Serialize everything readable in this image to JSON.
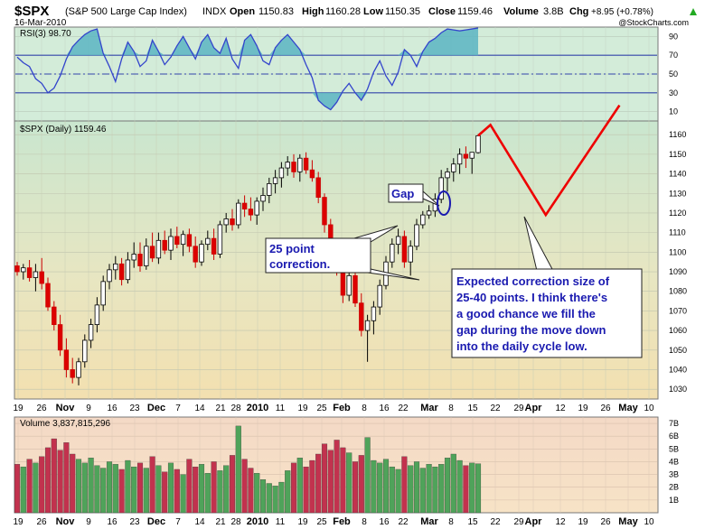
{
  "header": {
    "symbol": "$SPX",
    "name": "(S&P 500 Large Cap Index)",
    "exchange": "INDX",
    "date": "16-Mar-2010",
    "open_label": "Open",
    "open": "1150.83",
    "high_label": "High",
    "high": "1160.28",
    "low_label": "Low",
    "low": "1150.35",
    "close_label": "Close",
    "close": "1159.46",
    "volume_label": "Volume",
    "volume": "3.8B",
    "chg_label": "Chg",
    "chg": "+8.95 (+0.78%)",
    "chg_icon": "up-arrow-icon",
    "brand": "@StockCharts.com"
  },
  "rsi": {
    "label": "RSI(3) 98.70",
    "ticks": [
      "90",
      "70",
      "50",
      "30",
      "10"
    ],
    "tick_values": [
      90,
      70,
      50,
      30,
      10
    ],
    "ylim": [
      0,
      100
    ],
    "overbought": 70,
    "oversold": 30,
    "values": [
      68,
      62,
      58,
      45,
      40,
      30,
      35,
      48,
      66,
      79,
      86,
      92,
      96,
      98,
      72,
      58,
      42,
      66,
      84,
      74,
      58,
      64,
      86,
      74,
      60,
      68,
      80,
      90,
      78,
      66,
      84,
      92,
      78,
      72,
      88,
      66,
      56,
      86,
      92,
      80,
      64,
      60,
      78,
      86,
      92,
      84,
      76,
      60,
      46,
      22,
      16,
      12,
      20,
      32,
      40,
      30,
      22,
      34,
      52,
      64,
      48,
      38,
      52,
      76,
      70,
      58,
      74,
      84,
      88,
      94,
      98,
      97,
      96,
      97,
      98,
      99
    ]
  },
  "price": {
    "label": "$SPX (Daily) 1159.46",
    "ticks": [
      "1160",
      "1150",
      "1140",
      "1130",
      "1120",
      "1110",
      "1100",
      "1090",
      "1080",
      "1070",
      "1060",
      "1050",
      "1040",
      "1030"
    ],
    "tick_values": [
      1160,
      1150,
      1140,
      1130,
      1120,
      1110,
      1100,
      1090,
      1080,
      1070,
      1060,
      1050,
      1040,
      1030
    ],
    "ylim": [
      1025,
      1167
    ],
    "bullish_color": "#ffffff",
    "bearish_color": "#dd0000",
    "candles": [
      [
        1093,
        1095,
        1088,
        1090
      ],
      [
        1090,
        1094,
        1086,
        1092
      ],
      [
        1092,
        1096,
        1085,
        1087
      ],
      [
        1087,
        1094,
        1080,
        1090
      ],
      [
        1090,
        1097,
        1081,
        1084
      ],
      [
        1084,
        1087,
        1070,
        1072
      ],
      [
        1072,
        1075,
        1060,
        1063
      ],
      [
        1063,
        1068,
        1047,
        1050
      ],
      [
        1050,
        1056,
        1036,
        1040
      ],
      [
        1040,
        1046,
        1033,
        1036
      ],
      [
        1036,
        1046,
        1032,
        1044
      ],
      [
        1044,
        1058,
        1041,
        1055
      ],
      [
        1055,
        1066,
        1051,
        1063
      ],
      [
        1063,
        1077,
        1059,
        1073
      ],
      [
        1073,
        1088,
        1070,
        1085
      ],
      [
        1085,
        1094,
        1081,
        1091
      ],
      [
        1091,
        1098,
        1086,
        1094
      ],
      [
        1094,
        1097,
        1083,
        1086
      ],
      [
        1086,
        1100,
        1084,
        1096
      ],
      [
        1096,
        1105,
        1092,
        1099
      ],
      [
        1099,
        1105,
        1090,
        1093
      ],
      [
        1093,
        1107,
        1091,
        1103
      ],
      [
        1103,
        1110,
        1095,
        1097
      ],
      [
        1097,
        1110,
        1094,
        1106
      ],
      [
        1106,
        1111,
        1099,
        1101
      ],
      [
        1101,
        1112,
        1096,
        1108
      ],
      [
        1108,
        1113,
        1102,
        1104
      ],
      [
        1104,
        1111,
        1098,
        1109
      ],
      [
        1109,
        1112,
        1100,
        1103
      ],
      [
        1103,
        1108,
        1092,
        1095
      ],
      [
        1095,
        1106,
        1093,
        1104
      ],
      [
        1104,
        1111,
        1101,
        1107
      ],
      [
        1107,
        1112,
        1096,
        1099
      ],
      [
        1099,
        1116,
        1097,
        1114
      ],
      [
        1114,
        1120,
        1110,
        1117
      ],
      [
        1117,
        1122,
        1111,
        1114
      ],
      [
        1114,
        1127,
        1112,
        1125
      ],
      [
        1125,
        1129,
        1118,
        1122
      ],
      [
        1122,
        1128,
        1116,
        1119
      ],
      [
        1119,
        1128,
        1114,
        1126
      ],
      [
        1126,
        1133,
        1121,
        1129
      ],
      [
        1129,
        1138,
        1125,
        1135
      ],
      [
        1135,
        1142,
        1130,
        1138
      ],
      [
        1138,
        1146,
        1133,
        1143
      ],
      [
        1143,
        1149,
        1139,
        1146
      ],
      [
        1146,
        1150,
        1138,
        1141
      ],
      [
        1141,
        1150,
        1136,
        1148
      ],
      [
        1148,
        1151,
        1140,
        1142
      ],
      [
        1142,
        1147,
        1136,
        1138
      ],
      [
        1138,
        1141,
        1125,
        1128
      ],
      [
        1128,
        1130,
        1110,
        1114
      ],
      [
        1114,
        1117,
        1095,
        1098
      ],
      [
        1098,
        1101,
        1088,
        1090
      ],
      [
        1090,
        1096,
        1074,
        1078
      ],
      [
        1078,
        1091,
        1075,
        1088
      ],
      [
        1088,
        1094,
        1072,
        1074
      ],
      [
        1074,
        1079,
        1057,
        1060
      ],
      [
        1060,
        1068,
        1044,
        1065
      ],
      [
        1065,
        1075,
        1058,
        1072
      ],
      [
        1072,
        1086,
        1068,
        1083
      ],
      [
        1083,
        1098,
        1081,
        1095
      ],
      [
        1095,
        1107,
        1092,
        1104
      ],
      [
        1104,
        1112,
        1099,
        1108
      ],
      [
        1108,
        1111,
        1092,
        1095
      ],
      [
        1095,
        1106,
        1088,
        1103
      ],
      [
        1103,
        1117,
        1101,
        1114
      ],
      [
        1114,
        1121,
        1112,
        1119
      ],
      [
        1119,
        1124,
        1117,
        1121
      ],
      [
        1121,
        1130,
        1118,
        1127
      ],
      [
        1127,
        1142,
        1125,
        1138
      ],
      [
        1138,
        1143,
        1131,
        1141
      ],
      [
        1141,
        1148,
        1136,
        1145
      ],
      [
        1145,
        1153,
        1140,
        1150
      ],
      [
        1150,
        1154,
        1143,
        1148
      ],
      [
        1148,
        1151,
        1140,
        1151
      ],
      [
        1150.83,
        1160.28,
        1150.35,
        1159.46
      ]
    ],
    "projection": [
      [
        75,
        1159.5
      ],
      [
        77,
        1165
      ],
      [
        86,
        1119
      ],
      [
        98,
        1175
      ]
    ]
  },
  "volume": {
    "label": "Volume 3,837,815,296",
    "ticks": [
      "7B",
      "6B",
      "5B",
      "4B",
      "3B",
      "2B",
      "1B"
    ],
    "tick_values": [
      7,
      6,
      5,
      4,
      3,
      2,
      1
    ],
    "ylim": [
      0,
      7.5
    ],
    "values": [
      3.8,
      3.6,
      4.2,
      3.9,
      4.4,
      5.1,
      5.8,
      4.9,
      5.5,
      4.6,
      4.2,
      3.9,
      4.3,
      3.7,
      3.5,
      4.0,
      3.8,
      3.4,
      4.1,
      3.6,
      3.9,
      3.5,
      4.4,
      3.7,
      3.2,
      3.9,
      3.4,
      3.0,
      4.2,
      3.6,
      3.8,
      3.1,
      4.0,
      3.3,
      3.7,
      4.5,
      6.8,
      4.2,
      3.5,
      3.1,
      2.6,
      2.3,
      2.1,
      2.4,
      3.3,
      3.9,
      4.3,
      3.6,
      4.1,
      4.6,
      5.4,
      4.9,
      5.7,
      5.1,
      4.7,
      4.0,
      4.5,
      5.9,
      4.1,
      3.9,
      4.2,
      3.6,
      3.4,
      4.4,
      3.7,
      4.0,
      3.5,
      3.8,
      3.6,
      3.8,
      4.3,
      4.6,
      4.1,
      3.7,
      3.9,
      3.84
    ]
  },
  "x_axis": {
    "labels": [
      "19",
      "26",
      "Nov",
      "9",
      "16",
      "23",
      "Dec",
      "7",
      "14",
      "21",
      "28",
      "2010",
      "11",
      "19",
      "25",
      "Feb",
      "8",
      "16",
      "22",
      "Mar",
      "8",
      "15",
      "22",
      "29",
      "Apr",
      "12",
      "19",
      "26",
      "May",
      "10"
    ],
    "bold": [
      "Nov",
      "Dec",
      "2010",
      "Feb",
      "Mar",
      "Apr",
      "May"
    ]
  },
  "annotations": {
    "gap": "Gap",
    "correction_line1": "25 point",
    "correction_line2": "correction.",
    "expected_lines": [
      "Expected correction size of",
      "25-40 points. I think there's",
      "a good chance we fill the",
      "gap during the move down",
      "into the daily cycle low."
    ]
  }
}
